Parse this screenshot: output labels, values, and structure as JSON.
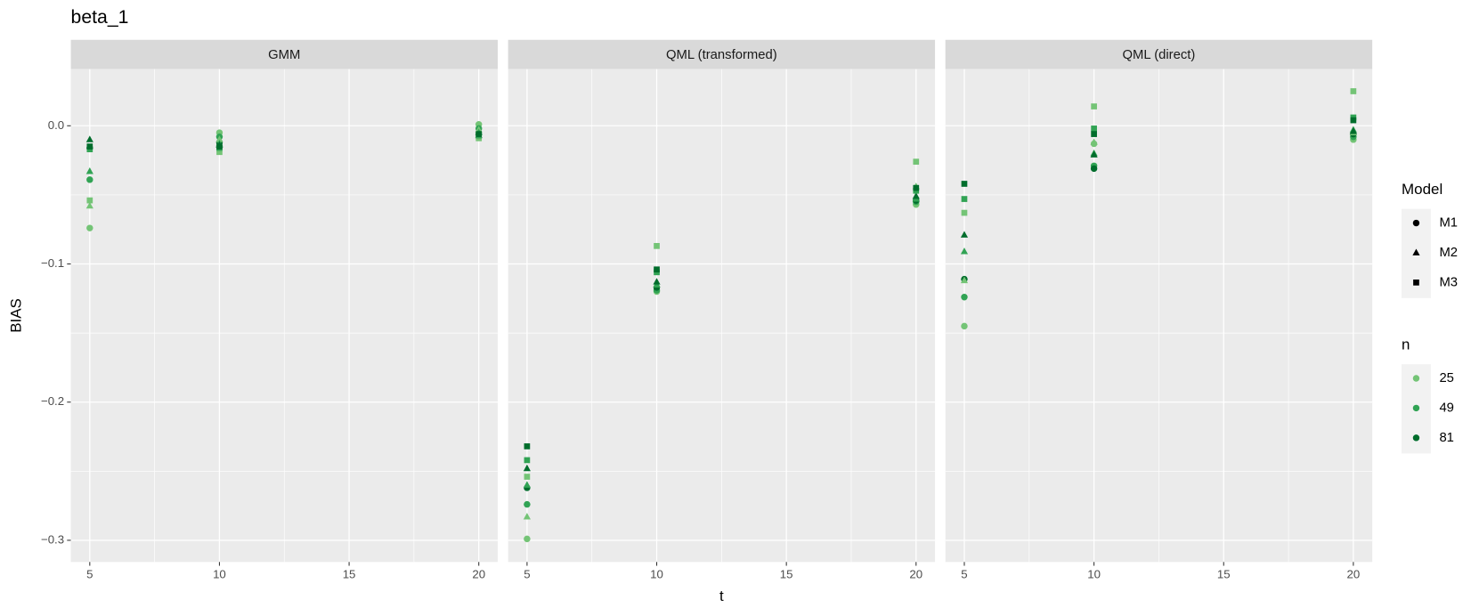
{
  "chart_data": {
    "type": "scatter",
    "title": "beta_1",
    "xlabel": "t",
    "ylabel": "BIAS",
    "x": [
      5,
      10,
      20
    ],
    "xlim": [
      4.27,
      20.73
    ],
    "ylim": [
      -0.3157,
      0.041
    ],
    "xticks": [
      5,
      10,
      15,
      20
    ],
    "yticks": [
      {
        "value": 0,
        "label": "0.0"
      },
      {
        "value": -0.1,
        "label": "−0.1"
      },
      {
        "value": -0.2,
        "label": "−0.2"
      },
      {
        "value": -0.3,
        "label": "−0.3"
      }
    ],
    "minor_xticks": [
      7.5,
      12.5,
      17.5
    ],
    "minor_yticks": [
      -0.05,
      -0.15,
      -0.25
    ],
    "grid": true,
    "legends": [
      {
        "title": "Model",
        "entries": [
          {
            "label": "M1",
            "shape": "circle"
          },
          {
            "label": "M2",
            "shape": "triangle"
          },
          {
            "label": "M3",
            "shape": "square"
          }
        ]
      },
      {
        "title": "n",
        "entries": [
          {
            "label": "25",
            "color": "#74c476"
          },
          {
            "label": "49",
            "color": "#31a354"
          },
          {
            "label": "81",
            "color": "#006d2c"
          }
        ]
      }
    ],
    "panels": [
      {
        "title": "GMM",
        "values": [
          [
            [
              -0.074,
              -0.005,
              0.001
            ],
            [
              -0.039,
              -0.008,
              -0.002
            ],
            [
              -0.016,
              -0.012,
              -0.006
            ]
          ],
          [
            [
              -0.058,
              -0.01,
              -0.003
            ],
            [
              -0.033,
              -0.013,
              -0.005
            ],
            [
              -0.01,
              -0.014,
              -0.007
            ]
          ],
          [
            [
              -0.054,
              -0.019,
              -0.009
            ],
            [
              -0.017,
              -0.016,
              -0.007
            ],
            [
              -0.015,
              -0.015,
              -0.006
            ]
          ]
        ]
      },
      {
        "title": "QML (transformed)",
        "values": [
          [
            [
              -0.299,
              -0.12,
              -0.057
            ],
            [
              -0.274,
              -0.119,
              -0.055
            ],
            [
              -0.262,
              -0.117,
              -0.054
            ]
          ],
          [
            [
              -0.283,
              -0.115,
              -0.044
            ],
            [
              -0.26,
              -0.115,
              -0.053
            ],
            [
              -0.248,
              -0.113,
              -0.051
            ]
          ],
          [
            [
              -0.254,
              -0.087,
              -0.026
            ],
            [
              -0.242,
              -0.106,
              -0.047
            ],
            [
              -0.232,
              -0.104,
              -0.045
            ]
          ]
        ]
      },
      {
        "title": "QML (direct)",
        "values": [
          [
            [
              -0.145,
              -0.013,
              -0.01
            ],
            [
              -0.124,
              -0.029,
              -0.008
            ],
            [
              -0.111,
              -0.031,
              -0.006
            ]
          ],
          [
            [
              -0.112,
              -0.012,
              -0.005
            ],
            [
              -0.091,
              -0.02,
              -0.003
            ],
            [
              -0.079,
              -0.021,
              -0.004
            ]
          ],
          [
            [
              -0.063,
              0.014,
              0.025
            ],
            [
              -0.053,
              -0.002,
              0.006
            ],
            [
              -0.042,
              -0.006,
              0.004
            ]
          ]
        ]
      }
    ]
  }
}
